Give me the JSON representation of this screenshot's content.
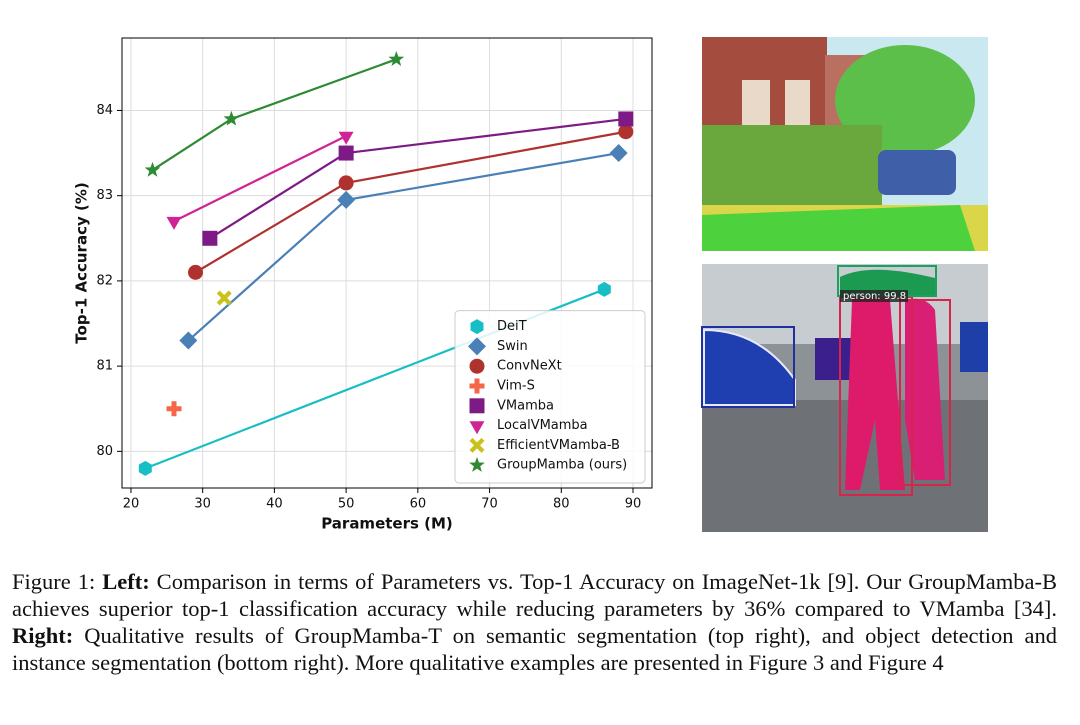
{
  "chart_data": {
    "type": "line",
    "xlabel": "Parameters (M)",
    "ylabel": "Top-1 Accuracy (%)",
    "xlim": [
      18.75,
      92.65
    ],
    "ylim": [
      79.57,
      84.85
    ],
    "xticks": [
      20,
      30,
      40,
      50,
      60,
      70,
      80,
      90
    ],
    "yticks": [
      80,
      81,
      82,
      83,
      84
    ],
    "grid": true,
    "legend": "lower right",
    "series": [
      {
        "name": "DeiT",
        "color": "#17bfc4",
        "marker": "hexagon",
        "x": [
          22,
          86
        ],
        "values": [
          79.8,
          81.9
        ]
      },
      {
        "name": "Swin",
        "color": "#4a80b6",
        "marker": "diamond",
        "x": [
          28,
          50,
          88
        ],
        "values": [
          81.3,
          82.95,
          83.5
        ]
      },
      {
        "name": "ConvNeXt",
        "color": "#b0322f",
        "marker": "circle",
        "x": [
          29,
          50,
          89
        ],
        "values": [
          82.1,
          83.15,
          83.75
        ]
      },
      {
        "name": "Vim-S",
        "color": "#f5654a",
        "marker": "plus",
        "x": [
          26
        ],
        "values": [
          80.5
        ]
      },
      {
        "name": "VMamba",
        "color": "#7d1a86",
        "marker": "square",
        "x": [
          31,
          50,
          89
        ],
        "values": [
          82.5,
          83.5,
          83.9
        ]
      },
      {
        "name": "LocalVMamba",
        "color": "#d02494",
        "marker": "triangle-down",
        "x": [
          26,
          50
        ],
        "values": [
          82.7,
          83.7
        ]
      },
      {
        "name": "EfficientVMamba-B",
        "color": "#c9c21a",
        "marker": "x",
        "x": [
          33
        ],
        "values": [
          81.8
        ]
      },
      {
        "name": "GroupMamba (ours)",
        "color": "#2e8b34",
        "marker": "star",
        "x": [
          23,
          34,
          57
        ],
        "values": [
          83.3,
          83.9,
          84.6
        ]
      }
    ]
  },
  "images": {
    "detection_label": "person: 99.8"
  },
  "caption": {
    "parts": [
      {
        "text": "Figure 1: ",
        "bold": false
      },
      {
        "text": "Left:",
        "bold": true
      },
      {
        "text": " Comparison in terms of Parameters vs. Top-1 Accuracy on ImageNet-1k [9]. Our GroupMamba-B achieves superior top-1 classification accuracy while reducing parameters by 36% compared to VMamba [34]. ",
        "bold": false
      },
      {
        "text": "Right:",
        "bold": true
      },
      {
        "text": " Qualitative results of GroupMamba-T on semantic segmentation (top right), and object detection and instance segmentation (bottom right). More qualitative examples are presented in Figure 3 and Figure 4",
        "bold": false
      }
    ]
  }
}
